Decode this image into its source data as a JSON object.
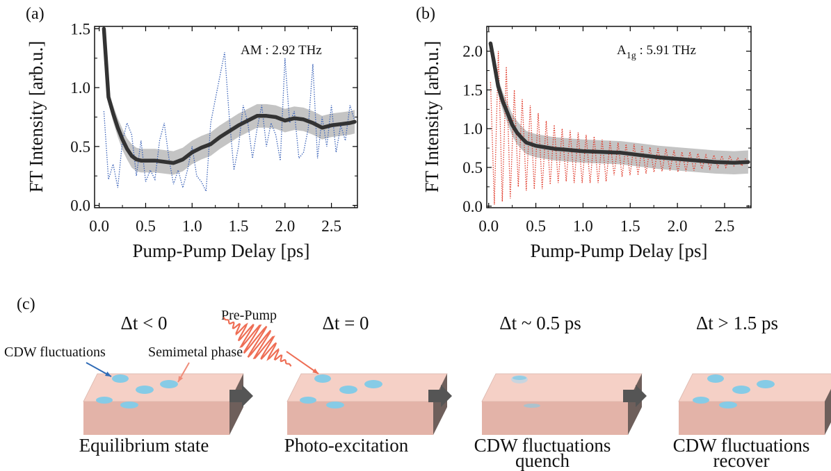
{
  "chart_data": [
    {
      "panel": "(a)",
      "type": "line",
      "xlabel": "Pump-Pump Delay [ps]",
      "ylabel": "FT Intensity [arb.u.]",
      "annotation": "AM : 2.92 THz",
      "xlim": [
        -0.05,
        2.78
      ],
      "ylim": [
        -0.02,
        1.52
      ],
      "xticks": [
        "0.0",
        "0.5",
        "1.0",
        "1.5",
        "2.0",
        "2.5"
      ],
      "yticks": [
        "0.0",
        "0.5",
        "1.0",
        "1.5"
      ],
      "line_color": "#333333",
      "band_color": "#c4c4c4",
      "dotted_color": "#3a62b8",
      "series": [
        {
          "style": "thick-line-with-band",
          "x": [
            0.05,
            0.1,
            0.15,
            0.2,
            0.25,
            0.3,
            0.35,
            0.4,
            0.45,
            0.5,
            0.6,
            0.7,
            0.8,
            0.9,
            1.0,
            1.1,
            1.2,
            1.3,
            1.4,
            1.5,
            1.6,
            1.7,
            1.8,
            1.9,
            2.0,
            2.1,
            2.2,
            2.3,
            2.4,
            2.5,
            2.6,
            2.7,
            2.75
          ],
          "y": [
            1.5,
            0.92,
            0.78,
            0.66,
            0.56,
            0.48,
            0.42,
            0.39,
            0.38,
            0.38,
            0.38,
            0.37,
            0.36,
            0.39,
            0.45,
            0.49,
            0.52,
            0.58,
            0.63,
            0.68,
            0.72,
            0.76,
            0.76,
            0.75,
            0.72,
            0.74,
            0.73,
            0.7,
            0.66,
            0.68,
            0.69,
            0.7,
            0.71
          ],
          "band": [
            0,
            0.05,
            0.07,
            0.08,
            0.09,
            0.09,
            0.1,
            0.1,
            0.1,
            0.1,
            0.1,
            0.1,
            0.1,
            0.1,
            0.1,
            0.1,
            0.1,
            0.1,
            0.1,
            0.1,
            0.1,
            0.1,
            0.1,
            0.1,
            0.1,
            0.1,
            0.1,
            0.1,
            0.1,
            0.1,
            0.1,
            0.1,
            0.1
          ]
        },
        {
          "style": "dotted",
          "x": [
            0.05,
            0.1,
            0.15,
            0.2,
            0.25,
            0.3,
            0.35,
            0.4,
            0.45,
            0.5,
            0.55,
            0.6,
            0.65,
            0.7,
            0.75,
            0.8,
            0.85,
            0.9,
            0.95,
            1.0,
            1.05,
            1.1,
            1.15,
            1.2,
            1.25,
            1.3,
            1.35,
            1.4,
            1.45,
            1.5,
            1.55,
            1.6,
            1.65,
            1.7,
            1.75,
            1.8,
            1.85,
            1.9,
            1.95,
            2.0,
            2.05,
            2.1,
            2.15,
            2.2,
            2.25,
            2.3,
            2.35,
            2.4,
            2.45,
            2.5,
            2.55,
            2.6,
            2.65,
            2.7,
            2.75
          ],
          "y": [
            0.8,
            0.22,
            0.35,
            0.15,
            0.55,
            0.7,
            0.6,
            0.25,
            0.55,
            0.2,
            0.3,
            0.22,
            0.55,
            0.7,
            0.4,
            0.18,
            0.3,
            0.15,
            0.3,
            0.5,
            0.25,
            0.2,
            0.12,
            0.7,
            0.9,
            1.1,
            1.3,
            0.75,
            0.3,
            0.5,
            0.85,
            0.7,
            0.4,
            0.65,
            0.85,
            0.5,
            0.7,
            0.6,
            0.38,
            1.25,
            0.7,
            0.8,
            0.4,
            0.45,
            0.65,
            1.2,
            0.4,
            0.75,
            0.5,
            0.85,
            0.45,
            0.68,
            0.55,
            0.85,
            0.72
          ]
        }
      ]
    },
    {
      "panel": "(b)",
      "type": "line",
      "xlabel": "Pump-Pump Delay [ps]",
      "ylabel": "FT Intensity [arb.u.]",
      "annotation_main": "A",
      "annotation_sub": "1g",
      "annotation_rest": " : 5.91 THz",
      "xlim": [
        -0.02,
        2.78
      ],
      "ylim": [
        -0.02,
        2.32
      ],
      "xticks": [
        "0.0",
        "0.5",
        "1.0",
        "1.5",
        "2.0",
        "2.5"
      ],
      "yticks": [
        "0.0",
        "0.5",
        "1.0",
        "1.5",
        "2.0"
      ],
      "line_color": "#333333",
      "band_color": "#c4c4c4",
      "dotted_color": "#e03a2a",
      "series": [
        {
          "style": "thick-line-with-band",
          "x": [
            0.02,
            0.05,
            0.1,
            0.15,
            0.2,
            0.25,
            0.3,
            0.35,
            0.4,
            0.5,
            0.6,
            0.7,
            0.8,
            0.9,
            1.0,
            1.2,
            1.4,
            1.6,
            1.8,
            2.0,
            2.2,
            2.4,
            2.6,
            2.75
          ],
          "y": [
            2.1,
            1.9,
            1.55,
            1.35,
            1.2,
            1.05,
            0.95,
            0.88,
            0.82,
            0.78,
            0.76,
            0.74,
            0.73,
            0.72,
            0.71,
            0.7,
            0.69,
            0.66,
            0.63,
            0.61,
            0.59,
            0.57,
            0.56,
            0.57
          ],
          "band": [
            0,
            0.08,
            0.1,
            0.12,
            0.13,
            0.14,
            0.15,
            0.15,
            0.15,
            0.15,
            0.15,
            0.15,
            0.15,
            0.15,
            0.15,
            0.15,
            0.15,
            0.15,
            0.15,
            0.15,
            0.15,
            0.15,
            0.15,
            0.15
          ]
        },
        {
          "style": "dotted",
          "amplitude_top": [
            2.3,
            2.0,
            1.8,
            1.5,
            1.38,
            1.3,
            1.2,
            1.1,
            1.05,
            1.0,
            0.98,
            0.95,
            0.92,
            0.9,
            0.86,
            0.84,
            0.82,
            0.8,
            0.8,
            0.78,
            0.76,
            0.75,
            0.74,
            0.72,
            0.7,
            0.7,
            0.68,
            0.66,
            0.66,
            0.65,
            0.65,
            0.62,
            0.62
          ],
          "amplitude_bottom": [
            0.02,
            0.06,
            0.1,
            0.25,
            0.2,
            0.22,
            0.22,
            0.28,
            0.3,
            0.32,
            0.3,
            0.3,
            0.3,
            0.3,
            0.32,
            0.4,
            0.38,
            0.4,
            0.4,
            0.42,
            0.44,
            0.45,
            0.46,
            0.44,
            0.45,
            0.46,
            0.48,
            0.48,
            0.5,
            0.5,
            0.52,
            0.52,
            0.5
          ],
          "period_ps": 0.0846,
          "start_ps": 0.06
        }
      ]
    }
  ],
  "panel_c": {
    "label": "(c)",
    "stages": [
      {
        "delta": "Δt < 0",
        "caption1": "Equilibrium state",
        "caption2": ""
      },
      {
        "delta": "Δt = 0",
        "caption1": "Photo-excitation",
        "caption2": ""
      },
      {
        "delta": "Δt ~ 0.5 ps",
        "caption1": "CDW fluctuations",
        "caption2": "quench"
      },
      {
        "delta": "Δt > 1.5 ps",
        "caption1": "CDW fluctuations",
        "caption2": "recover"
      }
    ],
    "annotations": {
      "cdw": "CDW fluctuations",
      "semimetal": "Semimetal phase",
      "prepump": "Pre-Pump"
    },
    "colors": {
      "slab_top": "#f5d0c6",
      "slab_front": "#e3b3a8",
      "slab_side": "#6e5f5b",
      "spot": "#86cbe6",
      "arrow": "#555555",
      "cdw_arrow": "#2f6bb6",
      "semimetal_arrow": "#ef8c79",
      "pulse": "#ee6e55"
    }
  }
}
